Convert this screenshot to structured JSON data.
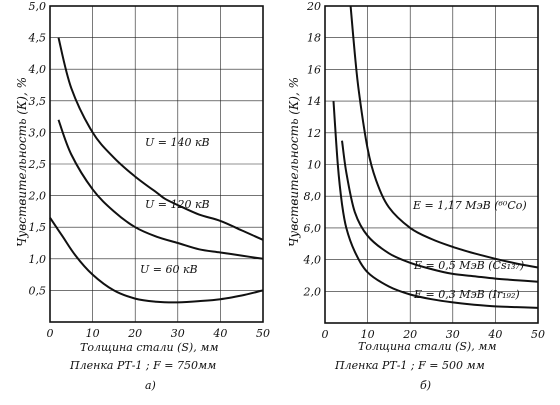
{
  "chart_data": [
    {
      "type": "line",
      "ylabel": "Чувствительность (К), %",
      "xlabel": "Толщина стали (S), мм",
      "note": "Пленка РТ-1 ; F = 750мм",
      "caption": "а)",
      "xlim": [
        0,
        50
      ],
      "ylim": [
        0,
        5.0
      ],
      "xticks": [
        "0",
        "10",
        "20",
        "30",
        "40",
        "50"
      ],
      "yticks": [
        "0,5",
        "1,0",
        "1,5",
        "2,0",
        "2,5",
        "3,0",
        "3,5",
        "4,0",
        "4,5",
        "5,0"
      ],
      "grid": true,
      "series": [
        {
          "name": "U = 140 кВ",
          "points": [
            [
              2,
              4.5
            ],
            [
              5,
              3.7
            ],
            [
              10,
              3.0
            ],
            [
              15,
              2.6
            ],
            [
              20,
              2.3
            ],
            [
              25,
              2.05
            ],
            [
              27,
              1.95
            ],
            [
              30,
              1.85
            ],
            [
              35,
              1.7
            ],
            [
              40,
              1.6
            ],
            [
              45,
              1.45
            ],
            [
              50,
              1.3
            ]
          ]
        },
        {
          "name": "U = 120 кВ",
          "points": [
            [
              2,
              3.2
            ],
            [
              5,
              2.65
            ],
            [
              10,
              2.1
            ],
            [
              15,
              1.75
            ],
            [
              20,
              1.5
            ],
            [
              25,
              1.35
            ],
            [
              30,
              1.25
            ],
            [
              35,
              1.15
            ],
            [
              40,
              1.1
            ],
            [
              45,
              1.05
            ],
            [
              50,
              1.0
            ]
          ]
        },
        {
          "name": "U = 60 кВ",
          "points": [
            [
              0,
              1.65
            ],
            [
              3,
              1.35
            ],
            [
              6,
              1.05
            ],
            [
              10,
              0.75
            ],
            [
              15,
              0.5
            ],
            [
              20,
              0.37
            ],
            [
              25,
              0.32
            ],
            [
              30,
              0.31
            ],
            [
              35,
              0.33
            ],
            [
              40,
              0.36
            ],
            [
              45,
              0.42
            ],
            [
              50,
              0.5
            ]
          ]
        }
      ]
    },
    {
      "type": "line",
      "ylabel": "Чувствительность (К), %",
      "xlabel": "Толщина стали (S), мм",
      "note": "Пленка РТ-1 ; F = 500 мм",
      "caption": "б)",
      "xlim": [
        0,
        50
      ],
      "ylim": [
        0,
        20
      ],
      "xticks": [
        "0",
        "10",
        "20",
        "30",
        "40",
        "50"
      ],
      "yticks": [
        "2,0",
        "4,0",
        "6,0",
        "8,0",
        "10",
        "12",
        "14",
        "16",
        "18",
        "20"
      ],
      "grid": true,
      "series": [
        {
          "name": "E = 1,17 МэВ (⁶⁰Co)",
          "points": [
            [
              6,
              20
            ],
            [
              7,
              17
            ],
            [
              8,
              14.5
            ],
            [
              10,
              11
            ],
            [
              12,
              9
            ],
            [
              15,
              7.3
            ],
            [
              20,
              6.0
            ],
            [
              25,
              5.3
            ],
            [
              30,
              4.8
            ],
            [
              35,
              4.4
            ],
            [
              40,
              4.05
            ],
            [
              45,
              3.75
            ],
            [
              50,
              3.5
            ]
          ]
        },
        {
          "name": "E = 0,5 МэВ (Cs₁₃₇)",
          "points": [
            [
              4,
              11.5
            ],
            [
              5,
              9.5
            ],
            [
              7,
              7.0
            ],
            [
              10,
              5.5
            ],
            [
              15,
              4.4
            ],
            [
              20,
              3.8
            ],
            [
              25,
              3.4
            ],
            [
              30,
              3.1
            ],
            [
              35,
              2.95
            ],
            [
              40,
              2.8
            ],
            [
              45,
              2.7
            ],
            [
              50,
              2.6
            ]
          ]
        },
        {
          "name": "E = 0,3 МэВ (Ir₁₉₂)",
          "points": [
            [
              2,
              14
            ],
            [
              3,
              10
            ],
            [
              4,
              7.5
            ],
            [
              5,
              6.0
            ],
            [
              7,
              4.5
            ],
            [
              10,
              3.2
            ],
            [
              15,
              2.3
            ],
            [
              20,
              1.8
            ],
            [
              25,
              1.5
            ],
            [
              30,
              1.3
            ],
            [
              35,
              1.15
            ],
            [
              40,
              1.05
            ],
            [
              45,
              1.0
            ],
            [
              50,
              0.95
            ]
          ]
        }
      ]
    }
  ]
}
